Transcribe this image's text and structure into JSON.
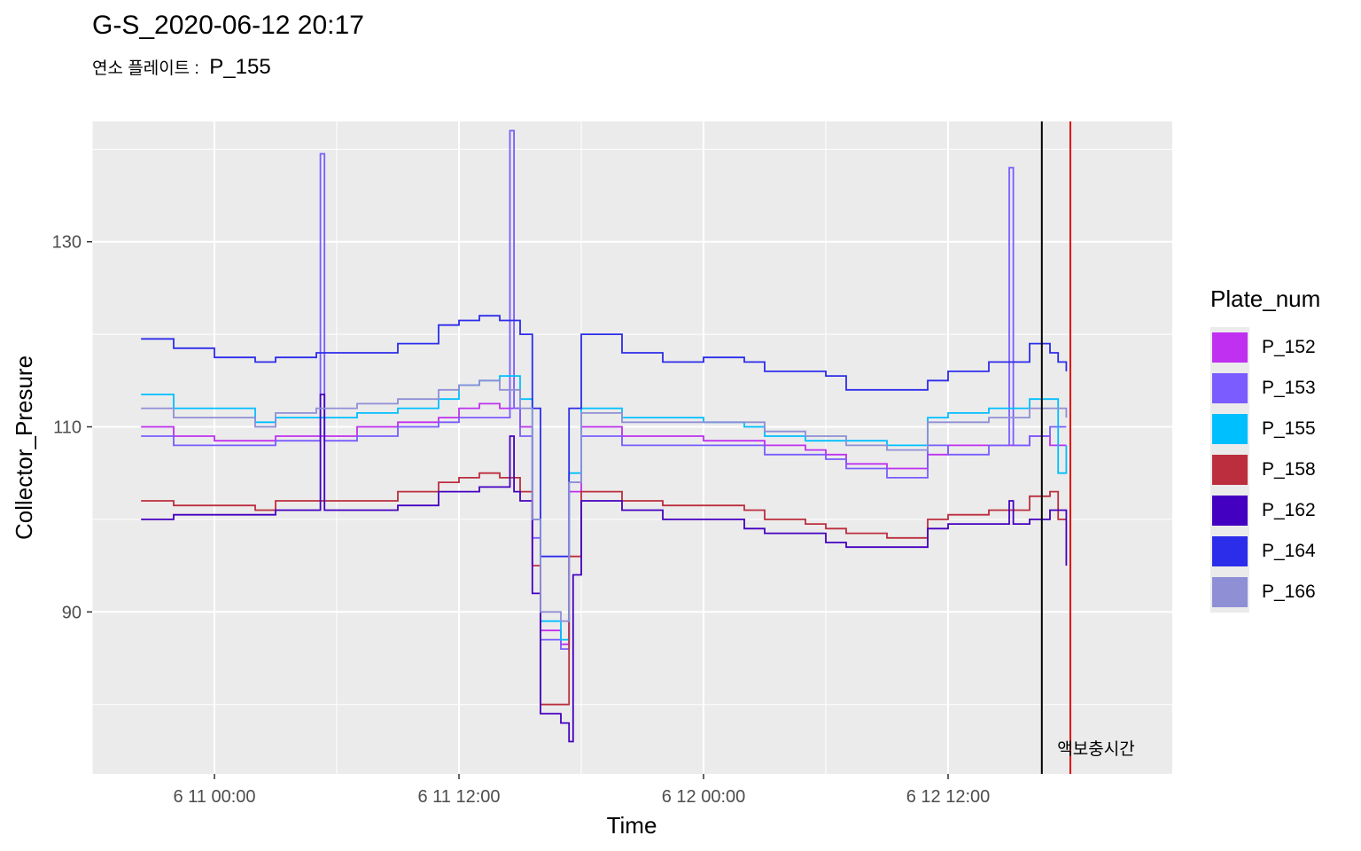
{
  "title": "G-S_2020-06-12 20:17",
  "subtitle": {
    "label": "연소 플레이트 :",
    "value": "P_155"
  },
  "chart_data": {
    "type": "line",
    "xlabel": "Time",
    "ylabel": "Collector_Presure",
    "x_ticks": [
      "6 11 00:00",
      "6 11 12:00",
      "6 12 00:00",
      "6 12 12:00"
    ],
    "y_ticks": [
      90,
      110,
      130
    ],
    "xlim_hours": [
      -6,
      47
    ],
    "ylim": [
      72.5,
      143
    ],
    "grid": true,
    "legend": {
      "title": "Plate_num",
      "placement": "right"
    },
    "annotation": {
      "text": "액보충시간"
    },
    "series": [
      {
        "name": "P_152",
        "color": "#c030f0",
        "points": [
          [
            -3.6,
            110
          ],
          [
            -2,
            109
          ],
          [
            0,
            108.5
          ],
          [
            2,
            108.5
          ],
          [
            3,
            109
          ],
          [
            5,
            109
          ],
          [
            7,
            110
          ],
          [
            9,
            110.5
          ],
          [
            11,
            111
          ],
          [
            12,
            112
          ],
          [
            13,
            112.5
          ],
          [
            14,
            112
          ],
          [
            15,
            110
          ],
          [
            15.6,
            100
          ],
          [
            16,
            88
          ],
          [
            17,
            86.5
          ],
          [
            17.4,
            103
          ],
          [
            18,
            110
          ],
          [
            20,
            109
          ],
          [
            22,
            109
          ],
          [
            24,
            108.5
          ],
          [
            26,
            108.5
          ],
          [
            27,
            108
          ],
          [
            29,
            107.5
          ],
          [
            30,
            107
          ],
          [
            31,
            106
          ],
          [
            33,
            105.5
          ],
          [
            35,
            107
          ],
          [
            36,
            108
          ],
          [
            38,
            108
          ],
          [
            40,
            109
          ],
          [
            41,
            108
          ],
          [
            41.8,
            108
          ]
        ]
      },
      {
        "name": "P_153",
        "color": "#7a5cff",
        "points": [
          [
            -3.6,
            109
          ],
          [
            -2,
            108
          ],
          [
            0,
            108
          ],
          [
            2,
            108
          ],
          [
            3,
            108.5
          ],
          [
            5,
            108.5
          ],
          [
            5.2,
            139.5
          ],
          [
            5.4,
            108.5
          ],
          [
            7,
            109
          ],
          [
            9,
            110
          ],
          [
            11,
            110.5
          ],
          [
            12,
            111
          ],
          [
            13,
            111
          ],
          [
            14.5,
            142
          ],
          [
            14.7,
            112
          ],
          [
            15,
            109
          ],
          [
            15.6,
            98
          ],
          [
            16,
            87
          ],
          [
            17,
            86
          ],
          [
            17.4,
            104
          ],
          [
            18,
            109
          ],
          [
            20,
            108
          ],
          [
            22,
            108
          ],
          [
            24,
            108
          ],
          [
            26,
            108
          ],
          [
            27,
            107
          ],
          [
            29,
            107
          ],
          [
            30,
            106.5
          ],
          [
            31,
            105.5
          ],
          [
            33,
            104.5
          ],
          [
            35,
            108
          ],
          [
            36,
            107
          ],
          [
            38,
            108
          ],
          [
            39,
            138
          ],
          [
            39.2,
            108
          ],
          [
            40,
            109
          ],
          [
            41,
            110
          ],
          [
            41.8,
            110
          ]
        ]
      },
      {
        "name": "P_155",
        "color": "#00bfff",
        "points": [
          [
            -3.6,
            113.5
          ],
          [
            -2,
            112
          ],
          [
            0,
            112
          ],
          [
            2,
            110.5
          ],
          [
            3,
            111
          ],
          [
            5,
            111
          ],
          [
            7,
            111.5
          ],
          [
            9,
            112
          ],
          [
            11,
            113
          ],
          [
            12,
            114.5
          ],
          [
            13,
            115
          ],
          [
            14,
            115.5
          ],
          [
            15,
            113
          ],
          [
            15.6,
            100
          ],
          [
            16,
            89
          ],
          [
            17,
            87
          ],
          [
            17.4,
            105
          ],
          [
            18,
            112
          ],
          [
            20,
            111
          ],
          [
            22,
            111
          ],
          [
            24,
            110.5
          ],
          [
            26,
            110
          ],
          [
            27,
            109
          ],
          [
            29,
            108.5
          ],
          [
            30,
            108.5
          ],
          [
            31,
            108.5
          ],
          [
            33,
            108
          ],
          [
            35,
            111
          ],
          [
            36,
            111.5
          ],
          [
            38,
            112
          ],
          [
            40,
            113
          ],
          [
            41,
            113
          ],
          [
            41.4,
            105
          ],
          [
            41.8,
            108
          ]
        ]
      },
      {
        "name": "P_158",
        "color": "#bc2e3e",
        "points": [
          [
            -3.6,
            102
          ],
          [
            -2,
            101.5
          ],
          [
            0,
            101.5
          ],
          [
            2,
            101
          ],
          [
            3,
            102
          ],
          [
            5,
            102
          ],
          [
            7,
            102
          ],
          [
            9,
            103
          ],
          [
            11,
            104
          ],
          [
            12,
            104.5
          ],
          [
            13,
            105
          ],
          [
            14,
            104.5
          ],
          [
            15,
            103
          ],
          [
            15.6,
            95
          ],
          [
            16,
            80
          ],
          [
            17,
            80
          ],
          [
            17.4,
            96
          ],
          [
            18,
            103
          ],
          [
            20,
            102
          ],
          [
            22,
            101.5
          ],
          [
            24,
            101.5
          ],
          [
            26,
            101
          ],
          [
            27,
            100
          ],
          [
            29,
            99.5
          ],
          [
            30,
            99
          ],
          [
            31,
            98.5
          ],
          [
            33,
            98
          ],
          [
            35,
            100
          ],
          [
            36,
            100.5
          ],
          [
            38,
            101
          ],
          [
            40,
            102.5
          ],
          [
            41,
            103
          ],
          [
            41.4,
            100
          ],
          [
            41.8,
            100
          ]
        ]
      },
      {
        "name": "P_162",
        "color": "#4400c0",
        "points": [
          [
            -3.6,
            100
          ],
          [
            -2,
            100.5
          ],
          [
            0,
            100.5
          ],
          [
            2,
            100.5
          ],
          [
            3,
            101
          ],
          [
            5,
            101
          ],
          [
            5.2,
            113.5
          ],
          [
            5.4,
            101
          ],
          [
            7,
            101
          ],
          [
            9,
            101.5
          ],
          [
            11,
            103
          ],
          [
            12,
            103
          ],
          [
            13,
            103.5
          ],
          [
            14.5,
            109
          ],
          [
            14.7,
            103
          ],
          [
            15,
            102
          ],
          [
            15.6,
            92
          ],
          [
            16,
            79
          ],
          [
            17,
            78
          ],
          [
            17.4,
            76
          ],
          [
            17.6,
            94
          ],
          [
            18,
            102
          ],
          [
            20,
            101
          ],
          [
            22,
            100
          ],
          [
            24,
            100
          ],
          [
            26,
            99
          ],
          [
            27,
            98.5
          ],
          [
            29,
            98.5
          ],
          [
            30,
            97.5
          ],
          [
            31,
            97
          ],
          [
            33,
            97
          ],
          [
            35,
            99
          ],
          [
            36,
            99.5
          ],
          [
            38,
            99.5
          ],
          [
            39,
            102
          ],
          [
            39.2,
            99.5
          ],
          [
            40,
            100
          ],
          [
            41,
            101
          ],
          [
            41.4,
            101
          ],
          [
            41.8,
            95
          ]
        ]
      },
      {
        "name": "P_164",
        "color": "#2c2ceb",
        "points": [
          [
            -3.6,
            119.5
          ],
          [
            -2,
            118.5
          ],
          [
            0,
            117.5
          ],
          [
            2,
            117
          ],
          [
            3,
            117.5
          ],
          [
            5,
            118
          ],
          [
            7,
            118
          ],
          [
            9,
            119
          ],
          [
            11,
            121
          ],
          [
            12,
            121.5
          ],
          [
            13,
            122
          ],
          [
            14,
            121.5
          ],
          [
            15,
            120
          ],
          [
            15.6,
            112
          ],
          [
            16,
            96
          ],
          [
            17,
            96
          ],
          [
            17.4,
            112
          ],
          [
            18,
            120
          ],
          [
            20,
            118
          ],
          [
            22,
            117
          ],
          [
            24,
            117.5
          ],
          [
            26,
            117
          ],
          [
            27,
            116
          ],
          [
            29,
            116
          ],
          [
            30,
            115.5
          ],
          [
            31,
            114
          ],
          [
            33,
            114
          ],
          [
            35,
            115
          ],
          [
            36,
            116
          ],
          [
            38,
            117
          ],
          [
            40,
            119
          ],
          [
            41,
            118
          ],
          [
            41.4,
            117
          ],
          [
            41.8,
            116
          ]
        ]
      },
      {
        "name": "P_166",
        "color": "#8f8fd6",
        "points": [
          [
            -3.6,
            112
          ],
          [
            -2,
            111
          ],
          [
            0,
            111
          ],
          [
            2,
            110
          ],
          [
            3,
            111.5
          ],
          [
            5,
            112
          ],
          [
            7,
            112.5
          ],
          [
            9,
            113
          ],
          [
            11,
            114
          ],
          [
            12,
            114.5
          ],
          [
            13,
            115
          ],
          [
            14,
            114
          ],
          [
            15,
            112
          ],
          [
            15.6,
            100
          ],
          [
            16,
            90
          ],
          [
            17,
            89
          ],
          [
            17.4,
            104
          ],
          [
            18,
            111.5
          ],
          [
            20,
            110.5
          ],
          [
            22,
            110.5
          ],
          [
            24,
            110.5
          ],
          [
            26,
            110.5
          ],
          [
            27,
            109.5
          ],
          [
            29,
            109
          ],
          [
            30,
            109
          ],
          [
            31,
            108
          ],
          [
            33,
            107.5
          ],
          [
            35,
            110.5
          ],
          [
            36,
            110.5
          ],
          [
            38,
            111
          ],
          [
            40,
            112
          ],
          [
            41,
            112
          ],
          [
            41.8,
            111
          ]
        ]
      }
    ],
    "vlines": [
      {
        "x_hour": 40.6,
        "color": "#000000"
      },
      {
        "x_hour": 42.0,
        "color": "#e00000"
      }
    ]
  }
}
